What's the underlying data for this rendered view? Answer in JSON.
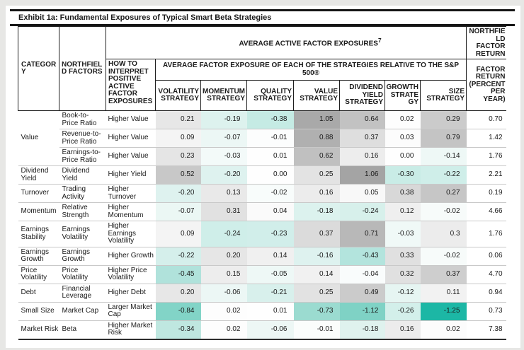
{
  "title": "Exhibit 1a: Fundamental Exposures of Typical Smart Beta Strategies",
  "colors": {
    "heat_positive_max": "#a4a4a4",
    "heat_negative_max": "#1cb7a5",
    "border_dark": "#151515",
    "row_separator": "#c9c9c9"
  },
  "table": {
    "header": {
      "category": "CATEGORY",
      "northfield_factors": "NORTHFIELD FACTORS",
      "how_to_interpret": "HOW TO INTERPRET POSITIVE ACTIVE FACTOR EXPOSURES",
      "avg_active": "AVERAGE ACTIVE FACTOR EXPOSURES",
      "avg_active_sup": "7",
      "avg_relative": "AVERAGE FACTOR EXPOSURE OF EACH OF THE STRATEGIES RELATIVE TO THE S&P 500®",
      "strategies": [
        "VOLATILITY STRATEGY",
        "MOMENTUM STRATEGY",
        "QUALITY STRATEGY",
        "VALUE STRATEGY",
        "DIVIDEND YIELD STRATEGY",
        "GROWTH STRATEGY",
        "SIZE STRATEGY"
      ],
      "northfield_return": "NORTHFIELD FACTOR RETURN",
      "factor_return": "FACTOR RETURN (PERCENT PER YEAR)"
    },
    "rows": [
      {
        "category": "Value",
        "span": 3,
        "factor": "Book-to-Price Ratio",
        "interpret": "Higher Value",
        "cells": [
          {
            "v": "0.21",
            "bg": "#e7e7e7"
          },
          {
            "v": "-0.19",
            "bg": "#ddf2ee"
          },
          {
            "v": "-0.38",
            "bg": "#c5ebe4"
          },
          {
            "v": "1.05",
            "bg": "#a9a9a9"
          },
          {
            "v": "0.64",
            "bg": "#c2c2c2"
          },
          {
            "v": "0.02",
            "bg": "#fdfdfd"
          },
          {
            "v": "0.29",
            "bg": "#cbcbcb"
          }
        ],
        "ret": "0.70"
      },
      {
        "factor": "Revenue-to-Price Ratio",
        "interpret": "Higher Value",
        "cells": [
          {
            "v": "0.09",
            "bg": "#f4f4f4"
          },
          {
            "v": "-0.07",
            "bg": "#ecf7f5"
          },
          {
            "v": "-0.01",
            "bg": "#fcfdfd"
          },
          {
            "v": "0.88",
            "bg": "#b0b0b0"
          },
          {
            "v": "0.37",
            "bg": "#dedede"
          },
          {
            "v": "0.03",
            "bg": "#fcfcfc"
          },
          {
            "v": "0.79",
            "bg": "#c4c4c4"
          }
        ],
        "ret": "1.42"
      },
      {
        "factor": "Earnings-to-Price Ratio",
        "interpret": "Higher Value",
        "cells": [
          {
            "v": "0.23",
            "bg": "#e5e5e5"
          },
          {
            "v": "-0.03",
            "bg": "#f3faf9"
          },
          {
            "v": "0.01",
            "bg": "#fefefe"
          },
          {
            "v": "0.62",
            "bg": "#c0c0c0"
          },
          {
            "v": "0.16",
            "bg": "#ededed"
          },
          {
            "v": "0.00",
            "bg": "#fefefe"
          },
          {
            "v": "-0.14",
            "bg": "#eef8f6"
          }
        ],
        "ret": "1.76"
      },
      {
        "category": "Dividend Yield",
        "factor": "Dividend Yield",
        "interpret": "Higher Yield",
        "cells": [
          {
            "v": "0.52",
            "bg": "#c8c8c8"
          },
          {
            "v": "-0.20",
            "bg": "#def2ef"
          },
          {
            "v": "0.00",
            "bg": "#fefefe"
          },
          {
            "v": "0.25",
            "bg": "#e3e3e3"
          },
          {
            "v": "1.06",
            "bg": "#a4a4a4"
          },
          {
            "v": "-0.30",
            "bg": "#c9ece6"
          },
          {
            "v": "-0.22",
            "bg": "#cfeee9"
          }
        ],
        "ret": "2.21"
      },
      {
        "category": "Turnover",
        "factor": "Trading Activity",
        "interpret": "Higher Turnover",
        "cells": [
          {
            "v": "-0.20",
            "bg": "#def2ef"
          },
          {
            "v": "0.13",
            "bg": "#e9e9e9"
          },
          {
            "v": "-0.02",
            "bg": "#f8fcfb"
          },
          {
            "v": "0.16",
            "bg": "#ececec"
          },
          {
            "v": "0.05",
            "bg": "#f8f8f8"
          },
          {
            "v": "0.38",
            "bg": "#d8d8d8"
          },
          {
            "v": "0.27",
            "bg": "#c6c6c6"
          }
        ],
        "ret": "0.19"
      },
      {
        "category": "Momentum",
        "factor": "Relative Strength",
        "interpret": "Higher Momentum",
        "cells": [
          {
            "v": "-0.07",
            "bg": "#ebf7f4"
          },
          {
            "v": "0.31",
            "bg": "#e1e1e1"
          },
          {
            "v": "0.04",
            "bg": "#fafafa"
          },
          {
            "v": "-0.18",
            "bg": "#dcf2ee"
          },
          {
            "v": "-0.24",
            "bg": "#d7f0eb"
          },
          {
            "v": "0.12",
            "bg": "#efefef"
          },
          {
            "v": "-0.02",
            "bg": "#f7fbfa"
          }
        ],
        "ret": "4.66"
      },
      {
        "category": "Earnings Stability",
        "factor": "Earnings Volatility",
        "interpret": "Higher Earnings Volatility",
        "cells": [
          {
            "v": "0.09",
            "bg": "#f4f4f4"
          },
          {
            "v": "-0.24",
            "bg": "#cfeee9"
          },
          {
            "v": "-0.23",
            "bg": "#d1eeea"
          },
          {
            "v": "0.37",
            "bg": "#dbdbdb"
          },
          {
            "v": "0.71",
            "bg": "#b8b8b8"
          },
          {
            "v": "-0.03",
            "bg": "#f0f9f7"
          },
          {
            "v": "0.3",
            "bg": "#ececec"
          }
        ],
        "ret": "1.76"
      },
      {
        "category": "Earnings Growth",
        "factor": "Earnings Growth",
        "interpret": "Higher Growth",
        "cells": [
          {
            "v": "-0.22",
            "bg": "#d5efeb"
          },
          {
            "v": "0.20",
            "bg": "#e6e6e6"
          },
          {
            "v": "0.14",
            "bg": "#f0f0f0"
          },
          {
            "v": "-0.16",
            "bg": "#def2ef"
          },
          {
            "v": "-0.43",
            "bg": "#b3e4dd"
          },
          {
            "v": "0.33",
            "bg": "#e0e0e0"
          },
          {
            "v": "-0.02",
            "bg": "#f7fbfa"
          }
        ],
        "ret": "0.06"
      },
      {
        "category": "Price Volatility",
        "factor": "Price Volatility",
        "interpret": "Higher Price Volatility",
        "cells": [
          {
            "v": "-0.45",
            "bg": "#b0e2db"
          },
          {
            "v": "0.15",
            "bg": "#ededed"
          },
          {
            "v": "-0.05",
            "bg": "#eef8f6"
          },
          {
            "v": "0.14",
            "bg": "#f1f1f1"
          },
          {
            "v": "-0.04",
            "bg": "#f9fcfc"
          },
          {
            "v": "0.32",
            "bg": "#e0e0e0"
          },
          {
            "v": "0.37",
            "bg": "#cecece"
          }
        ],
        "ret": "4.70"
      },
      {
        "category": "Debt",
        "factor": "Financial Leverage",
        "interpret": "Higher Debt",
        "cells": [
          {
            "v": "0.20",
            "bg": "#e7e7e7"
          },
          {
            "v": "-0.06",
            "bg": "#ecf7f5"
          },
          {
            "v": "-0.21",
            "bg": "#d8f0ec"
          },
          {
            "v": "0.25",
            "bg": "#e2e2e2"
          },
          {
            "v": "0.49",
            "bg": "#cbcbcb"
          },
          {
            "v": "-0.12",
            "bg": "#e6f5f2"
          },
          {
            "v": "0.11",
            "bg": "#f2f2f2"
          }
        ],
        "ret": "0.94"
      },
      {
        "category": "Small Size",
        "factor": "Market Cap",
        "interpret": "Larger Market Cap",
        "cells": [
          {
            "v": "-0.84",
            "bg": "#82d4c7"
          },
          {
            "v": "0.02",
            "bg": "#fdfdfd"
          },
          {
            "v": "0.01",
            "bg": "#fefefe"
          },
          {
            "v": "-0.73",
            "bg": "#9bdbd0"
          },
          {
            "v": "-1.12",
            "bg": "#7fd2c5"
          },
          {
            "v": "-0.26",
            "bg": "#d3efea"
          },
          {
            "v": "-1.25",
            "bg": "#1cb7a5"
          }
        ],
        "ret": "0.73"
      },
      {
        "category": "Market Risk",
        "factor": "Beta",
        "interpret": "Higher Market Risk",
        "cells": [
          {
            "v": "-0.34",
            "bg": "#bfe7e0"
          },
          {
            "v": "0.02",
            "bg": "#fdfdfd"
          },
          {
            "v": "-0.06",
            "bg": "#edf7f5"
          },
          {
            "v": "-0.01",
            "bg": "#fbfdfc"
          },
          {
            "v": "-0.18",
            "bg": "#dff2ee"
          },
          {
            "v": "0.16",
            "bg": "#ececec"
          },
          {
            "v": "0.02",
            "bg": "#fcfcfc"
          }
        ],
        "ret": "7.38"
      }
    ]
  }
}
